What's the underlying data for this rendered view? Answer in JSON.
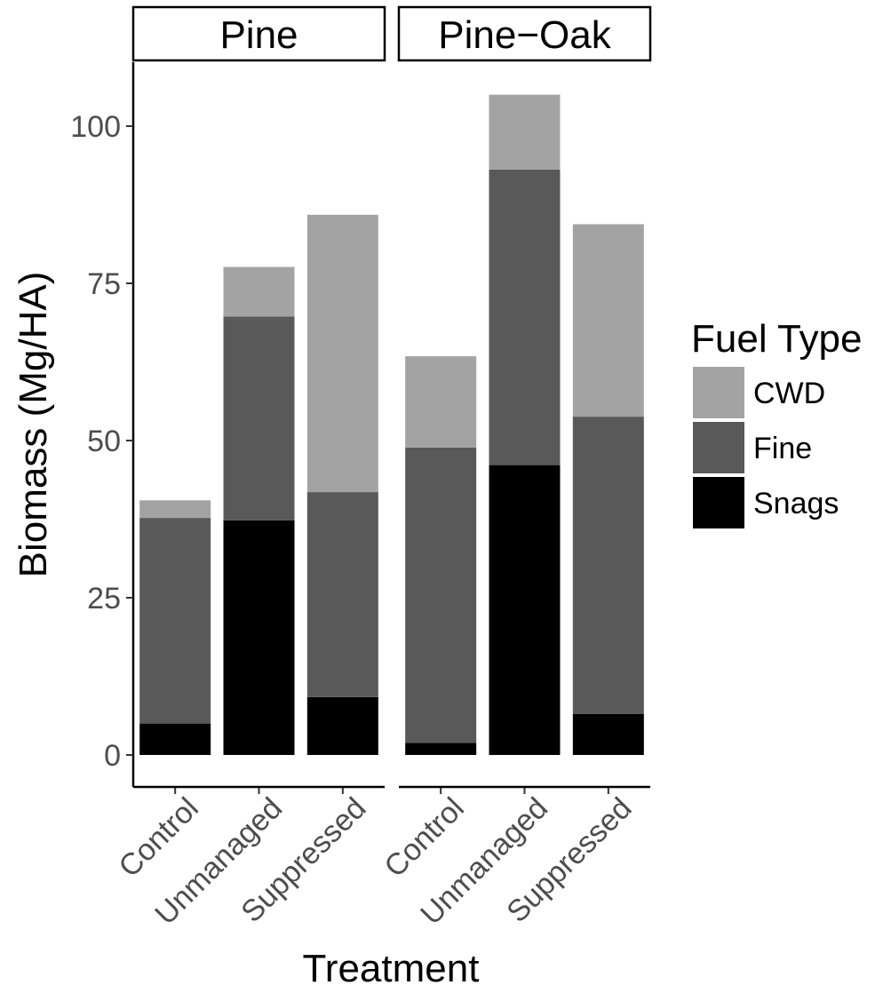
{
  "chart_data": {
    "type": "bar",
    "stacked": true,
    "xlabel": "Treatment",
    "ylabel": "Biomass (Mg/HA)",
    "ylim": [
      -5,
      110
    ],
    "yticks": [
      0,
      25,
      50,
      75,
      100
    ],
    "categories": [
      "Control",
      "Unmanaged",
      "Suppressed"
    ],
    "grid": false,
    "legend": {
      "title": "Fuel Type",
      "position": "right",
      "entries": [
        "CWD",
        "Fine",
        "Snags"
      ]
    },
    "panels": [
      {
        "label": "Pine",
        "series": [
          {
            "name": "Snags",
            "values": [
              5.0,
              37.3,
              9.2
            ]
          },
          {
            "name": "Fine",
            "values": [
              32.7,
              32.4,
              32.6
            ]
          },
          {
            "name": "CWD",
            "values": [
              2.8,
              7.9,
              44.1
            ]
          }
        ]
      },
      {
        "label": "Pine−Oak",
        "series": [
          {
            "name": "Snags",
            "values": [
              1.9,
              46.1,
              6.5
            ]
          },
          {
            "name": "Fine",
            "values": [
              47.0,
              47.0,
              47.3
            ]
          },
          {
            "name": "CWD",
            "values": [
              14.5,
              11.9,
              30.6
            ]
          }
        ]
      }
    ],
    "colors": {
      "CWD": "#a3a3a3",
      "Fine": "#595959",
      "Snags": "#000000"
    }
  }
}
